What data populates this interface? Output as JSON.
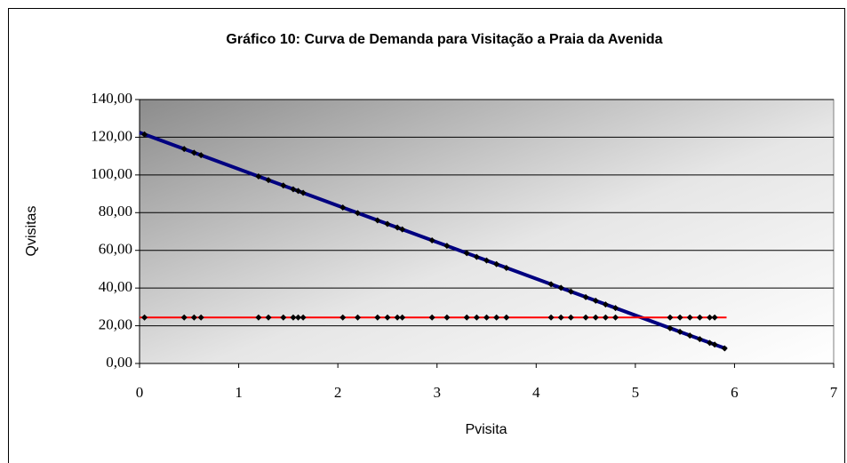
{
  "chart_data": {
    "type": "scatter",
    "title": "Gráfico 10: Curva de Demanda para Visitação a Praia da Avenida",
    "x_label": "Pvisita",
    "y_label": "Qvisitas",
    "xlim": [
      0,
      7
    ],
    "xticks": [
      0,
      1,
      2,
      3,
      4,
      5,
      6,
      7
    ],
    "ylim": [
      0,
      140
    ],
    "yticks": [
      {
        "value": 0,
        "label": "0,00"
      },
      {
        "value": 20,
        "label": "20,00"
      },
      {
        "value": 40,
        "label": "40,00"
      },
      {
        "value": 60,
        "label": "60,00"
      },
      {
        "value": 80,
        "label": "80,00"
      },
      {
        "value": 100,
        "label": "100,00"
      },
      {
        "value": 120,
        "label": "120,00"
      },
      {
        "value": 140,
        "label": "140,00"
      }
    ],
    "grid": true,
    "series": [
      {
        "color": "#000080",
        "mode": "line",
        "x": [
          0,
          5.92
        ],
        "values": [
          122.5,
          7.7
        ]
      },
      {
        "color": "#000000",
        "mode": "markers",
        "x": [
          0.05,
          0.45,
          0.55,
          0.62,
          1.2,
          1.3,
          1.45,
          1.55,
          1.6,
          1.65,
          2.05,
          2.2,
          2.4,
          2.5,
          2.6,
          2.65,
          2.95,
          3.1,
          3.3,
          3.4,
          3.5,
          3.6,
          3.7,
          4.15,
          4.25,
          4.35,
          4.5,
          4.6,
          4.7,
          4.8,
          5.35,
          5.45,
          5.55,
          5.65,
          5.75,
          5.8,
          5.9
        ],
        "values": [
          121.5,
          113.8,
          111.8,
          110.5,
          99.2,
          97.3,
          94.4,
          92.4,
          91.5,
          90.5,
          82.7,
          79.8,
          75.9,
          74.0,
          72.1,
          71.1,
          65.3,
          62.4,
          58.5,
          56.5,
          54.6,
          52.7,
          50.7,
          42.0,
          40.1,
          38.1,
          35.2,
          33.3,
          31.3,
          29.4,
          18.7,
          16.8,
          14.8,
          12.9,
          10.9,
          10.0,
          8.0
        ]
      },
      {
        "color": "#ff0000",
        "mode": "line",
        "x": [
          0,
          5.92
        ],
        "values": [
          24.4,
          24.4
        ]
      },
      {
        "color": "#000000",
        "mode": "markers",
        "x": [
          0.05,
          0.45,
          0.55,
          0.62,
          1.2,
          1.3,
          1.45,
          1.55,
          1.6,
          1.65,
          2.05,
          2.2,
          2.4,
          2.5,
          2.6,
          2.65,
          2.95,
          3.1,
          3.3,
          3.4,
          3.5,
          3.6,
          3.7,
          4.15,
          4.25,
          4.35,
          4.5,
          4.6,
          4.7,
          4.8,
          5.35,
          5.45,
          5.55,
          5.65,
          5.75,
          5.8
        ],
        "values": [
          24.4,
          24.4,
          24.4,
          24.4,
          24.4,
          24.4,
          24.4,
          24.4,
          24.4,
          24.4,
          24.4,
          24.4,
          24.4,
          24.4,
          24.4,
          24.4,
          24.4,
          24.4,
          24.4,
          24.4,
          24.4,
          24.4,
          24.4,
          24.4,
          24.4,
          24.4,
          24.4,
          24.4,
          24.4,
          24.4,
          24.4,
          24.4,
          24.4,
          24.4,
          24.4,
          24.4
        ]
      }
    ]
  }
}
